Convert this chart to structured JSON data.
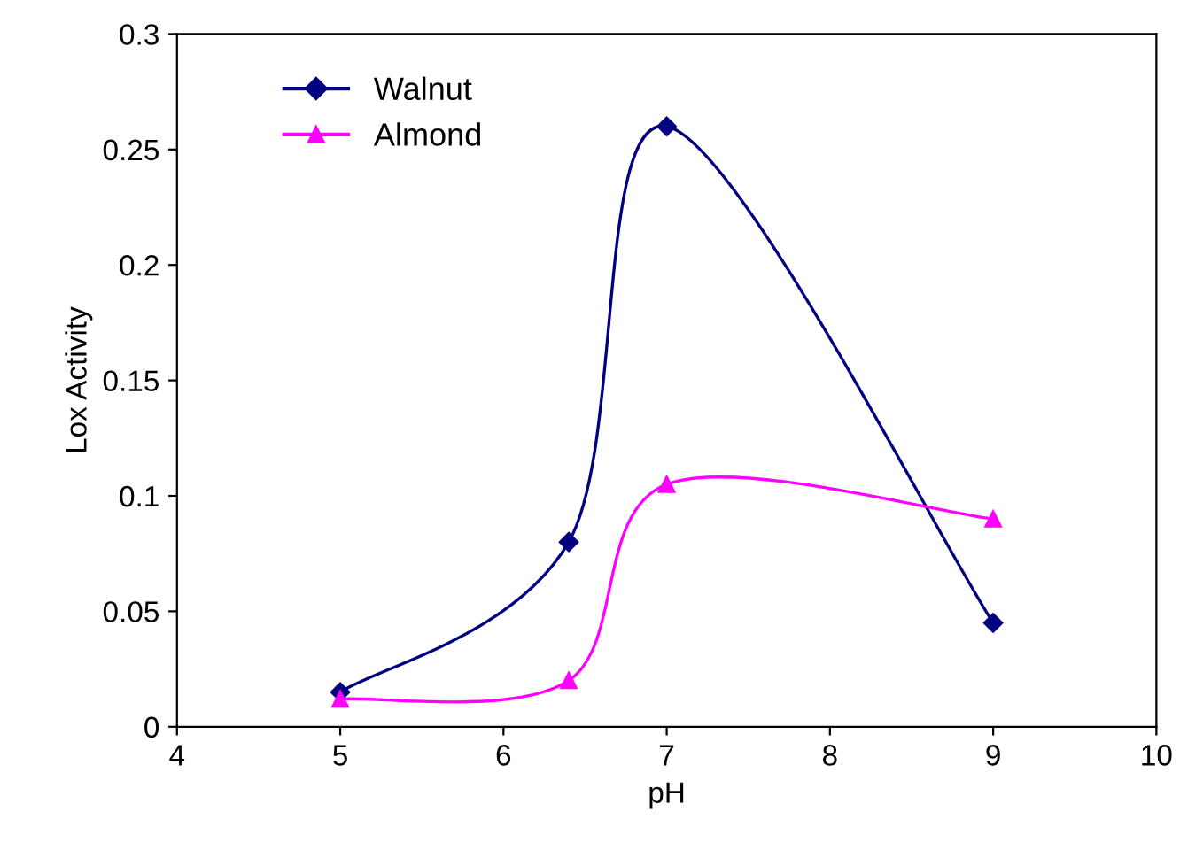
{
  "chart_data": {
    "type": "line",
    "xlabel": "pH",
    "ylabel": "Lox Activity",
    "xlim": [
      4,
      10
    ],
    "xticks": [
      4,
      5,
      6,
      7,
      8,
      9,
      10
    ],
    "ylim": [
      0,
      0.3
    ],
    "yticks": [
      0,
      0.05,
      0.1,
      0.15,
      0.2,
      0.25,
      0.3
    ],
    "grid": false,
    "legend": "top left",
    "line_style": "solid",
    "x": [
      5,
      6.4,
      7,
      9
    ],
    "series": [
      {
        "name": "Walnut",
        "color": "#000080",
        "marker": "diamond",
        "values": [
          0.015,
          0.08,
          0.26,
          0.045
        ]
      },
      {
        "name": "Almond",
        "color": "#ff00ff",
        "marker": "triangle",
        "values": [
          0.012,
          0.02,
          0.105,
          0.09
        ]
      }
    ]
  }
}
